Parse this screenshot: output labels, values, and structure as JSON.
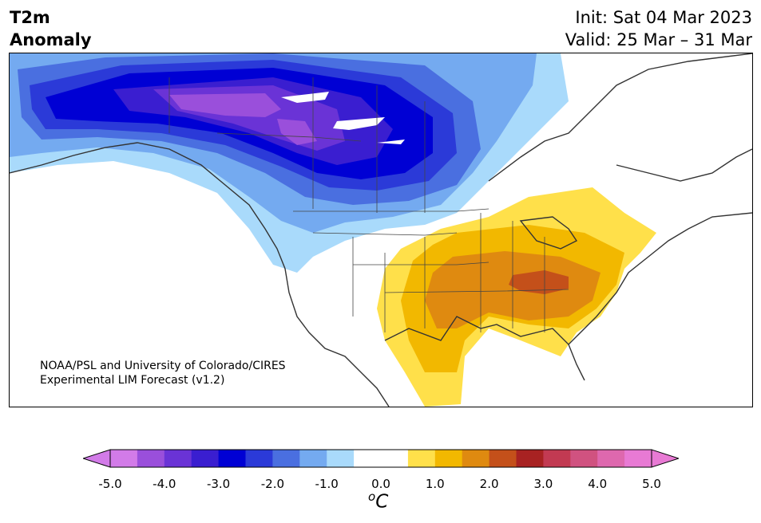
{
  "header": {
    "title_line1": "T2m",
    "title_line2": "Anomaly",
    "init": "Init: Sat 04 Mar 2023",
    "valid": "Valid: 25 Mar – 31 Mar"
  },
  "map": {
    "credit_line1": "NOAA/PSL and University of Colorado/CIRES",
    "credit_line2": "Experimental LIM Forecast (v1.2)",
    "cold_anomaly_region": "northwestern Canada / Alaska",
    "warm_anomaly_region": "central and eastern United States"
  },
  "colorbar": {
    "ticks": [
      "-5.0",
      "-4.0",
      "-3.0",
      "-2.0",
      "-1.0",
      "0.0",
      "1.0",
      "2.0",
      "3.0",
      "4.0",
      "5.0"
    ],
    "unit_prefix": "o",
    "unit_main": "C",
    "colors": [
      "#d27be8",
      "#9a4fdb",
      "#6a33d6",
      "#3a1ed0",
      "#0000d4",
      "#2b3ad8",
      "#4a6fe0",
      "#74aaf0",
      "#a9dafb",
      "#ffffff",
      "#ffffff",
      "#ffe04a",
      "#f2b800",
      "#df8a10",
      "#c4501a",
      "#a82222",
      "#c23a52",
      "#d05280",
      "#de68ae",
      "#e87ad4"
    ],
    "under_color": "#d27be8",
    "over_color": "#e87ad4"
  }
}
